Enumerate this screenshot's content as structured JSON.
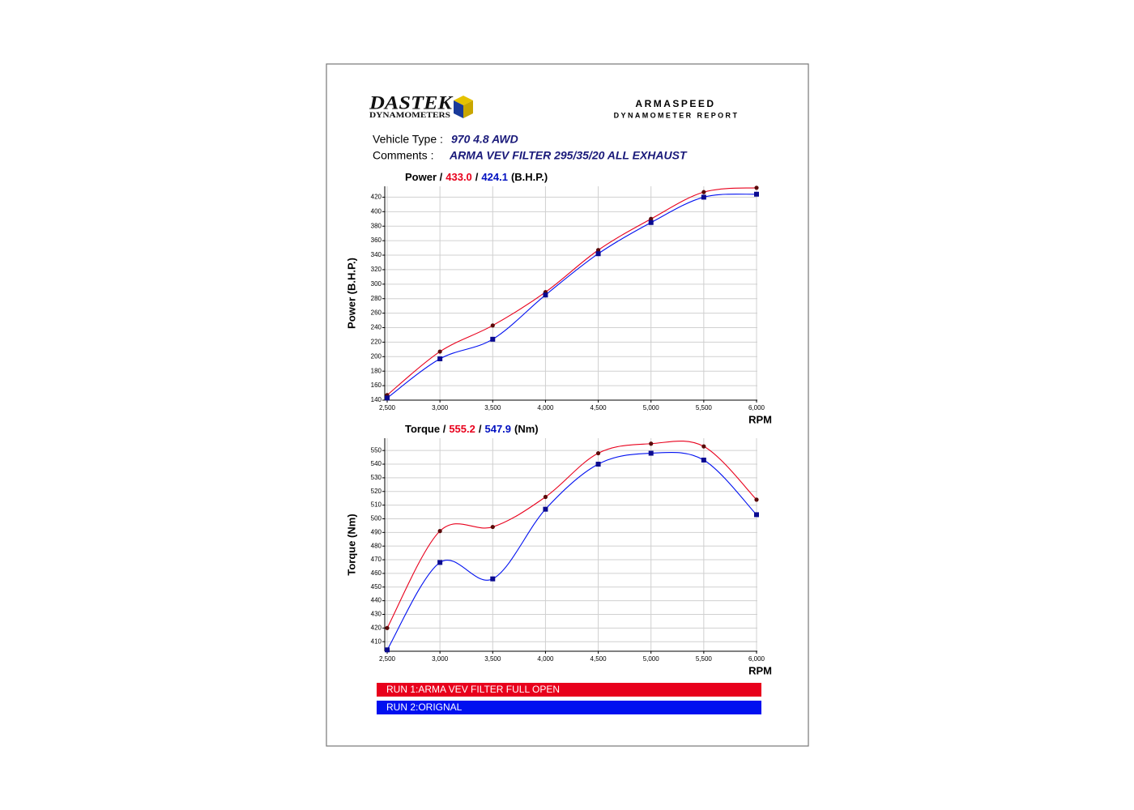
{
  "header": {
    "logo_main": "DASTEK",
    "logo_sub": "DYNAMOMETERS",
    "company": "ARMASPEED",
    "report": "DYNAMOMETER REPORT"
  },
  "vehicle": {
    "type_label": "Vehicle Type :",
    "type_value": "970 4.8 AWD",
    "comments_label": "Comments :",
    "comments_value": "ARMA VEV FILTER 295/35/20 ALL EXHAUST"
  },
  "legend": [
    {
      "name": "RUN 1:ARMA VEV FILTER FULL OPEN",
      "color": "#e8001c"
    },
    {
      "name": "RUN 2:ORIGNAL",
      "color": "#0010f0"
    }
  ],
  "chart_data": [
    {
      "type": "line",
      "title": [
        {
          "text": "Power /",
          "color": "#000000"
        },
        {
          "text": "433.0",
          "color": "#e8001c"
        },
        {
          "text": "/",
          "color": "#000000"
        },
        {
          "text": "424.1",
          "color": "#0010c0"
        },
        {
          "text": "(B.H.P.)",
          "color": "#000000"
        }
      ],
      "y_label": "Power (B.H.P.)",
      "x_label": "RPM",
      "x": [
        2500,
        3000,
        3500,
        4000,
        4500,
        5000,
        5500,
        6000
      ],
      "xlim": [
        2500,
        6000
      ],
      "xticks": [
        {
          "value": 2500,
          "label": "2,500"
        },
        {
          "value": 3000,
          "label": "3,000"
        },
        {
          "value": 3500,
          "label": "3,500"
        },
        {
          "value": 4000,
          "label": "4,000"
        },
        {
          "value": 4500,
          "label": "4,500"
        },
        {
          "value": 5000,
          "label": "5,000"
        },
        {
          "value": 5500,
          "label": "5,500"
        },
        {
          "value": 6000,
          "label": "6,000"
        }
      ],
      "ylim": [
        140,
        435
      ],
      "yticks": [
        140,
        160,
        180,
        200,
        220,
        240,
        260,
        280,
        300,
        320,
        340,
        360,
        380,
        400,
        420
      ],
      "grid": true,
      "series": [
        {
          "color": "#e8001c",
          "marker_color": "#5a0a0a",
          "marker": "circle",
          "values": [
            147,
            207,
            243,
            289,
            347,
            390,
            427,
            433.0
          ]
        },
        {
          "color": "#0010f0",
          "marker_color": "#0a0a90",
          "marker": "square",
          "values": [
            143,
            197,
            224,
            285,
            342,
            385,
            420,
            424.1
          ]
        }
      ]
    },
    {
      "type": "line",
      "title": [
        {
          "text": "Torque /",
          "color": "#000000"
        },
        {
          "text": "555.2",
          "color": "#e8001c"
        },
        {
          "text": "/",
          "color": "#000000"
        },
        {
          "text": "547.9",
          "color": "#0010c0"
        },
        {
          "text": "(Nm)",
          "color": "#000000"
        }
      ],
      "y_label": "Torque (Nm)",
      "x_label": "RPM",
      "x": [
        2500,
        3000,
        3500,
        4000,
        4500,
        5000,
        5500,
        6000
      ],
      "xlim": [
        2500,
        6000
      ],
      "xticks": [
        {
          "value": 2500,
          "label": "2,500"
        },
        {
          "value": 3000,
          "label": "3,000"
        },
        {
          "value": 3500,
          "label": "3,500"
        },
        {
          "value": 4000,
          "label": "4,000"
        },
        {
          "value": 4500,
          "label": "4,500"
        },
        {
          "value": 5000,
          "label": "5,000"
        },
        {
          "value": 5500,
          "label": "5,500"
        },
        {
          "value": 6000,
          "label": "6,000"
        }
      ],
      "ylim": [
        403,
        559
      ],
      "yticks": [
        410,
        420,
        430,
        440,
        450,
        460,
        470,
        480,
        490,
        500,
        510,
        520,
        530,
        540,
        550
      ],
      "grid": true,
      "series": [
        {
          "color": "#e8001c",
          "marker_color": "#5a0a0a",
          "marker": "circle",
          "values": [
            420,
            491,
            494,
            516,
            548,
            555,
            553,
            514
          ]
        },
        {
          "color": "#0010f0",
          "marker_color": "#0a0a90",
          "marker": "square",
          "values": [
            404,
            468,
            456,
            507,
            540,
            548,
            543,
            503
          ]
        }
      ]
    }
  ]
}
